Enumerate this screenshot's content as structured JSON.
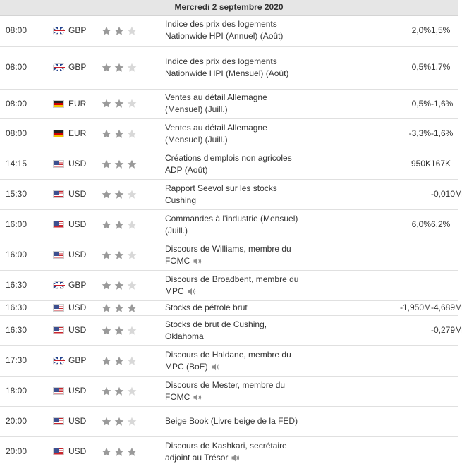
{
  "header": {
    "date": "Mercredi 2 septembre 2020"
  },
  "colors": {
    "star_filled": "#9a9a9a",
    "star_empty": "#d8d8d8",
    "speaker": "#8e8e8e",
    "gb_blue": "#1f3f8c",
    "de_red": "#d20000",
    "us_red": "#c8262e"
  },
  "events": [
    {
      "time": "08:00",
      "flag": "gb-flag-icon",
      "currency": "GBP",
      "importance": 2,
      "event": "Indice des prix des logements Nationwide HPI (Annuel) (Août)",
      "speech": false,
      "actual": "",
      "forecast": "2,0%",
      "previous": "1,5%"
    },
    {
      "time": "08:00",
      "flag": "gb-flag-icon",
      "currency": "GBP",
      "importance": 2,
      "event": "Indice des prix des logements Nationwide HPI (Mensuel) (Août)",
      "speech": false,
      "actual": "",
      "forecast": "0,5%",
      "previous": "1,7%"
    },
    {
      "time": "08:00",
      "flag": "de-flag-icon",
      "currency": "EUR",
      "importance": 2,
      "event": "Ventes au détail Allemagne (Mensuel) (Juill.)",
      "speech": false,
      "actual": "",
      "forecast": "0,5%",
      "previous": "-1,6%"
    },
    {
      "time": "08:00",
      "flag": "de-flag-icon",
      "currency": "EUR",
      "importance": 2,
      "event": "Ventes au détail Allemagne (Mensuel) (Juill.)",
      "speech": false,
      "actual": "",
      "forecast": "-3,3%",
      "previous": "-1,6%"
    },
    {
      "time": "14:15",
      "flag": "us-flag-icon",
      "currency": "USD",
      "importance": 3,
      "event": "Créations d'emplois non agricoles ADP (Août)",
      "speech": false,
      "actual": "",
      "forecast": "950K",
      "previous": "167K"
    },
    {
      "time": "15:30",
      "flag": "us-flag-icon",
      "currency": "USD",
      "importance": 2,
      "event": "Rapport Seevol sur les stocks Cushing",
      "speech": false,
      "actual": "",
      "forecast": "",
      "previous": "-0,010M"
    },
    {
      "time": "16:00",
      "flag": "us-flag-icon",
      "currency": "USD",
      "importance": 2,
      "event": "Commandes à l'industrie (Mensuel) (Juill.)",
      "speech": false,
      "actual": "",
      "forecast": "6,0%",
      "previous": "6,2%"
    },
    {
      "time": "16:00",
      "flag": "us-flag-icon",
      "currency": "USD",
      "importance": 2,
      "event": "Discours de Williams, membre du FOMC",
      "speech": true,
      "actual": "",
      "forecast": "",
      "previous": ""
    },
    {
      "time": "16:30",
      "flag": "gb-flag-icon",
      "currency": "GBP",
      "importance": 2,
      "event": "Discours de Broadbent, membre du MPC",
      "speech": true,
      "actual": "",
      "forecast": "",
      "previous": ""
    },
    {
      "time": "16:30",
      "flag": "us-flag-icon",
      "currency": "USD",
      "importance": 3,
      "event": "Stocks de pétrole brut",
      "speech": false,
      "actual": "",
      "forecast": "-1,950M",
      "previous": "-4,689M"
    },
    {
      "time": "16:30",
      "flag": "us-flag-icon",
      "currency": "USD",
      "importance": 2,
      "event": "Stocks de brut de Cushing, Oklahoma",
      "speech": false,
      "actual": "",
      "forecast": "",
      "previous": "-0,279M"
    },
    {
      "time": "17:30",
      "flag": "gb-flag-icon",
      "currency": "GBP",
      "importance": 2,
      "event": "Discours de Haldane, membre du MPC (BoE)",
      "speech": true,
      "actual": "",
      "forecast": "",
      "previous": ""
    },
    {
      "time": "18:00",
      "flag": "us-flag-icon",
      "currency": "USD",
      "importance": 2,
      "event": "Discours de Mester, membre du FOMC",
      "speech": true,
      "actual": "",
      "forecast": "",
      "previous": ""
    },
    {
      "time": "20:00",
      "flag": "us-flag-icon",
      "currency": "USD",
      "importance": 2,
      "event": "Beige Book (Livre beige de la FED)",
      "speech": false,
      "actual": "",
      "forecast": "",
      "previous": ""
    },
    {
      "time": "20:00",
      "flag": "us-flag-icon",
      "currency": "USD",
      "importance": 3,
      "event": "Discours de Kashkari, secrétaire adjoint au Trésor",
      "speech": true,
      "actual": "",
      "forecast": "",
      "previous": ""
    }
  ]
}
